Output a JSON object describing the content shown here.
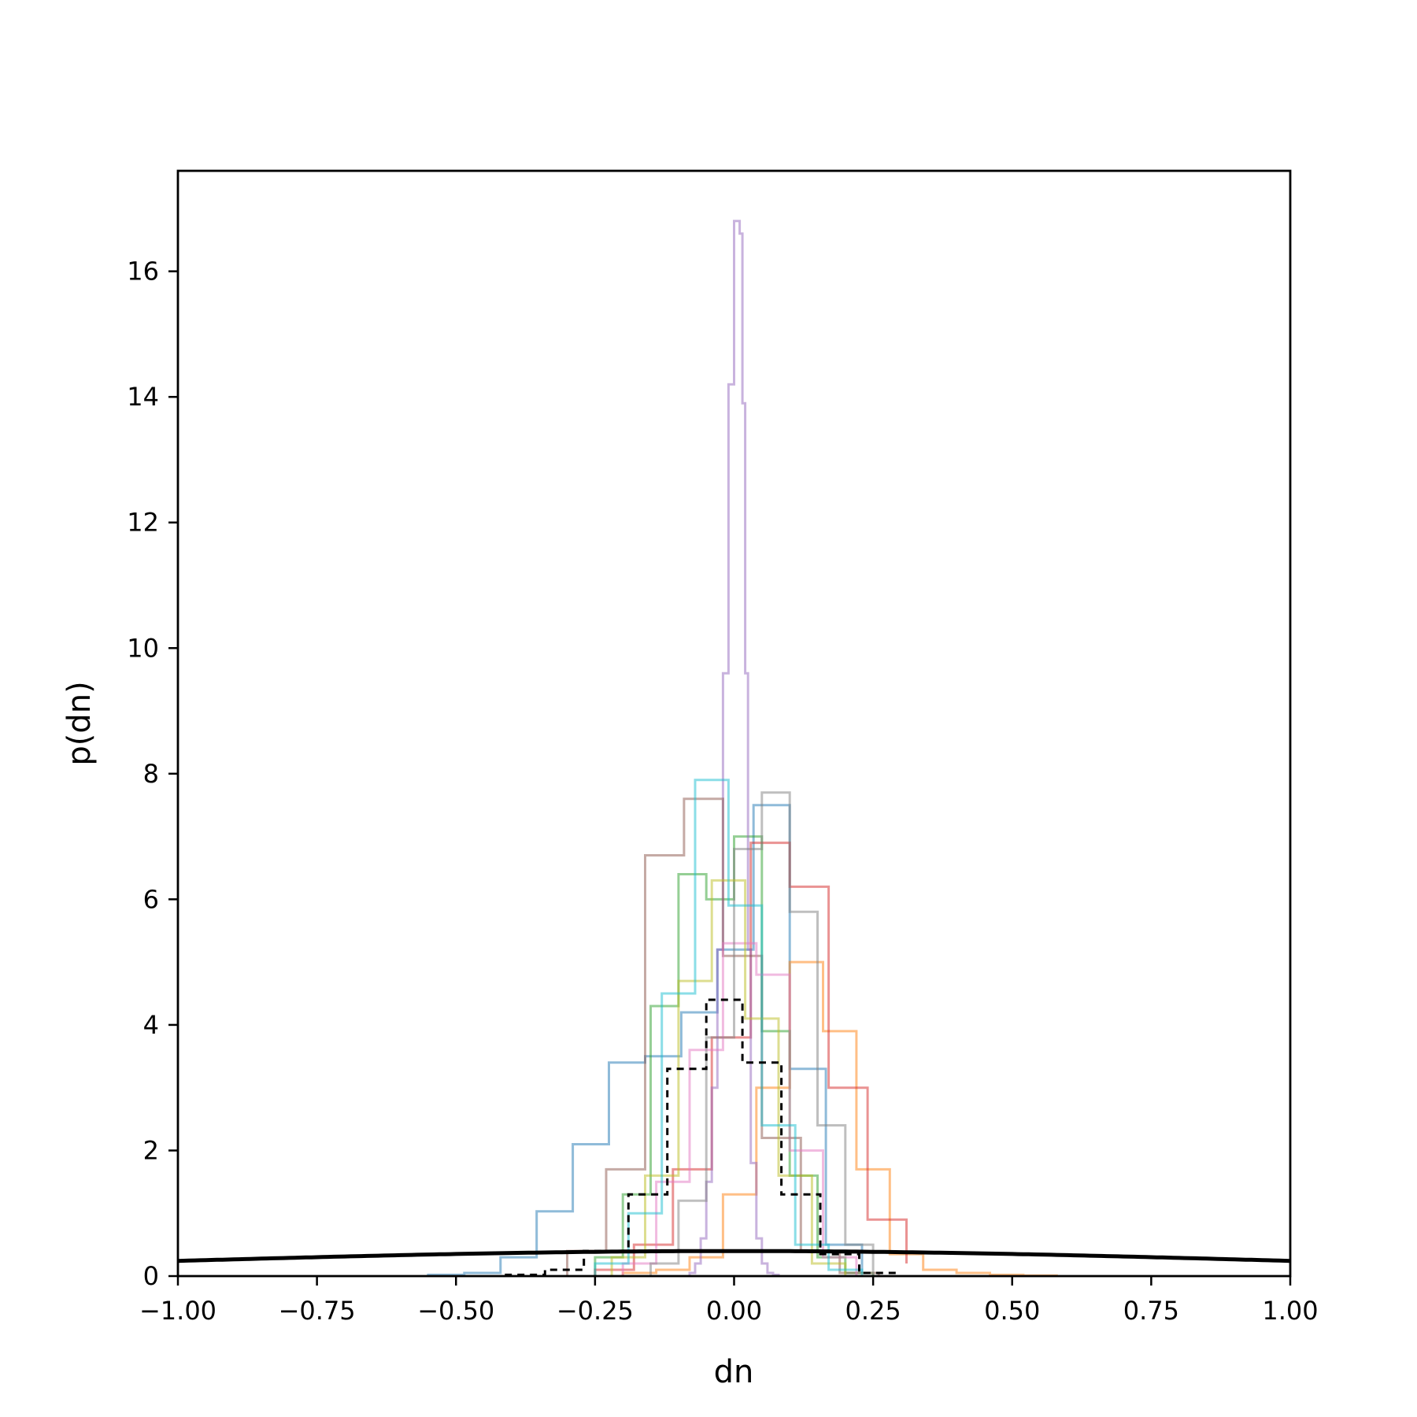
{
  "chart_data": {
    "type": "histogram",
    "title": "",
    "xlabel": "dn",
    "ylabel": "p(dn)",
    "xlim": [
      -1.0,
      1.0
    ],
    "ylim": [
      0,
      17.6
    ],
    "xticks": [
      -1.0,
      -0.75,
      -0.5,
      -0.25,
      0.0,
      0.25,
      0.5,
      0.75,
      1.0
    ],
    "xtick_labels": [
      "−1.00",
      "−0.75",
      "−0.50",
      "−0.25",
      "0.00",
      "0.25",
      "0.50",
      "0.75",
      "1.00"
    ],
    "yticks": [
      0,
      2,
      4,
      6,
      8,
      10,
      12,
      14,
      16
    ],
    "ytick_labels": [
      "0",
      "2",
      "4",
      "6",
      "8",
      "10",
      "12",
      "14",
      "16"
    ],
    "grid": false,
    "legend": "none",
    "series": [
      {
        "color": "#1f77b4",
        "edges": [
          -0.55,
          -0.485,
          -0.42,
          -0.355,
          -0.29,
          -0.225,
          -0.16,
          -0.095,
          -0.03,
          0.035,
          0.1,
          0.165,
          0.23
        ],
        "values": [
          0.02,
          0.05,
          0.3,
          1.03,
          2.1,
          3.4,
          3.5,
          4.2,
          5.2,
          7.5,
          3.3,
          0.5,
          0.05
        ]
      },
      {
        "color": "#ff7f0e",
        "edges": [
          -0.2,
          -0.14,
          -0.08,
          -0.02,
          0.04,
          0.1,
          0.16,
          0.22,
          0.28,
          0.34,
          0.4,
          0.46,
          0.52,
          0.58
        ],
        "values": [
          0.05,
          0.1,
          0.3,
          1.3,
          3.0,
          5.0,
          3.9,
          1.7,
          0.35,
          0.1,
          0.05,
          0.02,
          0.01
        ]
      },
      {
        "color": "#2ca02c",
        "edges": [
          -0.25,
          -0.2,
          -0.15,
          -0.1,
          -0.05,
          0.0,
          0.05,
          0.1,
          0.15,
          0.2,
          0.25
        ],
        "values": [
          0.3,
          1.3,
          4.3,
          6.4,
          6.0,
          7.0,
          3.9,
          1.6,
          0.3,
          0.05
        ]
      },
      {
        "color": "#d62728",
        "edges": [
          -0.25,
          -0.18,
          -0.11,
          -0.04,
          0.03,
          0.1,
          0.17,
          0.24,
          0.31
        ],
        "values": [
          0.1,
          0.5,
          1.7,
          3.8,
          6.9,
          6.2,
          3.0,
          0.9,
          0.2
        ]
      },
      {
        "color": "#9467bd",
        "edges": [
          -0.08,
          -0.07,
          -0.06,
          -0.05,
          -0.04,
          -0.03,
          -0.02,
          -0.01,
          0.0,
          0.005,
          0.01,
          0.015,
          0.02,
          0.025,
          0.03,
          0.04,
          0.05,
          0.06,
          0.07,
          0.08
        ],
        "values": [
          0.05,
          0.2,
          0.6,
          1.5,
          3.0,
          5.2,
          9.6,
          14.2,
          16.8,
          16.8,
          16.6,
          13.9,
          9.6,
          5.2,
          1.8,
          0.6,
          0.2,
          0.05,
          0.02
        ]
      },
      {
        "color": "#8c564b",
        "edges": [
          -0.3,
          -0.23,
          -0.16,
          -0.09,
          -0.02,
          0.05,
          0.12,
          0.19,
          0.26
        ],
        "values": [
          0.4,
          1.7,
          6.7,
          7.6,
          5.1,
          2.2,
          0.4,
          0.05
        ]
      },
      {
        "color": "#e377c2",
        "edges": [
          -0.2,
          -0.14,
          -0.08,
          -0.02,
          0.04,
          0.1,
          0.16,
          0.22
        ],
        "values": [
          0.2,
          1.5,
          3.6,
          5.3,
          4.8,
          2.0,
          0.3
        ]
      },
      {
        "color": "#7f7f7f",
        "edges": [
          -0.15,
          -0.1,
          -0.05,
          0.0,
          0.05,
          0.1,
          0.15,
          0.2,
          0.25
        ],
        "values": [
          0.2,
          1.2,
          3.8,
          6.8,
          7.7,
          5.8,
          2.4,
          0.5
        ]
      },
      {
        "color": "#bcbd22",
        "edges": [
          -0.22,
          -0.16,
          -0.1,
          -0.04,
          0.02,
          0.08,
          0.14,
          0.2
        ],
        "values": [
          0.3,
          1.6,
          4.7,
          6.3,
          4.1,
          1.6,
          0.2
        ]
      },
      {
        "color": "#17becf",
        "edges": [
          -0.25,
          -0.19,
          -0.13,
          -0.07,
          -0.01,
          0.05,
          0.11,
          0.17,
          0.23
        ],
        "values": [
          0.2,
          1.0,
          4.5,
          7.9,
          5.9,
          2.4,
          0.5,
          0.1
        ]
      },
      {
        "color": "#000000",
        "style": "dashed",
        "edges": [
          -0.41,
          -0.34,
          -0.27,
          -0.19,
          -0.12,
          -0.05,
          0.015,
          0.085,
          0.155,
          0.225,
          0.295
        ],
        "values": [
          0.02,
          0.1,
          0.4,
          1.3,
          3.3,
          4.4,
          3.4,
          1.3,
          0.35,
          0.05
        ]
      }
    ],
    "curve": {
      "type": "normal",
      "mean": 0.0,
      "sd": 1.0,
      "color": "#000000"
    }
  }
}
